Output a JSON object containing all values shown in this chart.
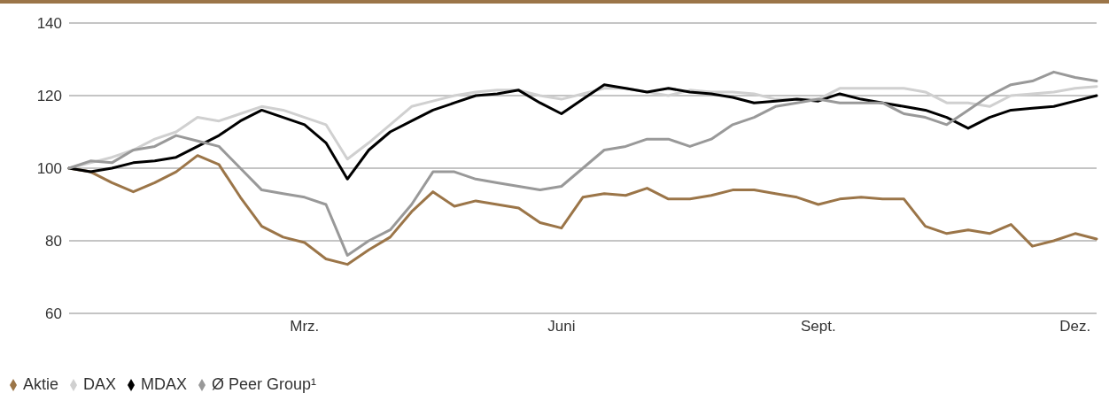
{
  "chart_data": {
    "type": "line",
    "categories": [
      null,
      null,
      null,
      null,
      null,
      null,
      null,
      null,
      null,
      null,
      null,
      "Mrz.",
      null,
      null,
      null,
      null,
      null,
      null,
      null,
      null,
      null,
      null,
      null,
      "Juni",
      null,
      null,
      null,
      null,
      null,
      null,
      null,
      null,
      null,
      null,
      null,
      "Sept.",
      null,
      null,
      null,
      null,
      null,
      null,
      null,
      null,
      null,
      null,
      null,
      "Dez.",
      null
    ],
    "series": [
      {
        "name": "Aktie",
        "color": "#9b7548",
        "values": [
          100,
          99,
          96,
          93.5,
          96,
          99,
          103.5,
          101,
          92,
          84,
          81,
          79.5,
          75,
          73.5,
          77.5,
          81,
          88,
          93.5,
          89.5,
          91,
          90,
          89,
          85,
          83.5,
          92,
          93,
          92.5,
          94.5,
          91.5,
          91.5,
          92.5,
          94,
          94,
          93,
          92,
          90,
          91.5,
          92,
          91.5,
          91.5,
          84,
          82,
          83,
          82,
          84.5,
          78.5,
          80,
          82,
          80.5
        ]
      },
      {
        "name": "DAX",
        "color": "#d0d0d0",
        "values": [
          100,
          101.5,
          103,
          105,
          108,
          110,
          114,
          113,
          115,
          117,
          116,
          114,
          112,
          102.5,
          107,
          112,
          117,
          118.5,
          120,
          121,
          121.5,
          121.5,
          120,
          119,
          120.5,
          122,
          122,
          121,
          120,
          121.5,
          121,
          121,
          120.5,
          119,
          119,
          119,
          122,
          122,
          122,
          122,
          121,
          118,
          118,
          117,
          120,
          120.5,
          121,
          122,
          122.5
        ]
      },
      {
        "name": "MDAX",
        "color": "#000000",
        "values": [
          100,
          99,
          100,
          101.5,
          102,
          103,
          106,
          109,
          113,
          116,
          114,
          112,
          107,
          97,
          105,
          110,
          113,
          116,
          118,
          120,
          120.5,
          121.5,
          118,
          115,
          119,
          123,
          122,
          121,
          122,
          121,
          120.5,
          119.5,
          118,
          118.5,
          119,
          118.5,
          120.5,
          119,
          118,
          117,
          116,
          114,
          111,
          114,
          116,
          116.5,
          117,
          118.5,
          120
        ]
      },
      {
        "name": "Ø Peer Group¹",
        "color": "#999999",
        "values": [
          100,
          102,
          101.5,
          105,
          106,
          109,
          107.5,
          106,
          100,
          94,
          93,
          92,
          90,
          76,
          80,
          83,
          90,
          99,
          99,
          97,
          96,
          95,
          94,
          95,
          100,
          105,
          106,
          108,
          108,
          106,
          108,
          112,
          114,
          117,
          118,
          119,
          118,
          118,
          118,
          115,
          114,
          112,
          116,
          120,
          123,
          124,
          126.5,
          125,
          124
        ]
      }
    ],
    "ylim": [
      60,
      140
    ],
    "yticks": [
      60,
      80,
      100,
      120,
      140
    ],
    "grid": "y",
    "legend": "bottom left",
    "marker": "none",
    "line_style": "solid"
  }
}
